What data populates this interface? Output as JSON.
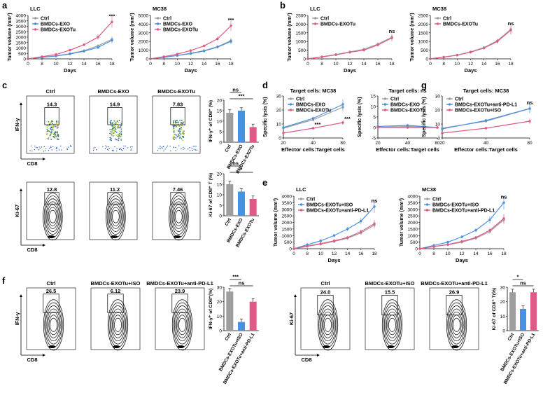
{
  "colors": {
    "grey": "#9e9e9e",
    "blue": "#4a90e2",
    "pink": "#e05a86",
    "black": "#000000"
  },
  "panel_labels": {
    "a": "a",
    "b": "b",
    "c": "c",
    "d": "d",
    "e": "e",
    "f": "f",
    "g": "g"
  },
  "flow_axes": {
    "ifng": "IFN-γ",
    "ki67": "Ki-67",
    "cd8": "CD8"
  },
  "chart_data": [
    {
      "id": "a1",
      "type": "line",
      "panel_title": "LLC",
      "ylabel": "Tumor volume (mm³)",
      "xlabel": "Days",
      "x": [
        0,
        8,
        10,
        12,
        14,
        16,
        18
      ],
      "ylim": [
        0,
        4000
      ],
      "yticks": [
        "0",
        "500",
        "1000",
        "1500",
        "2000",
        "2500",
        "3000",
        "3500",
        "4000"
      ],
      "legend": [
        "Ctrl",
        "BMDCs-EXO",
        "BMDCs-EXOTu"
      ],
      "series": [
        {
          "name": "Ctrl",
          "color": "#9e9e9e",
          "values": [
            0,
            150,
            280,
            480,
            750,
            1200,
            1800
          ]
        },
        {
          "name": "BMDCs-EXO",
          "color": "#4a90e2",
          "values": [
            0,
            140,
            260,
            450,
            700,
            1050,
            1700
          ]
        },
        {
          "name": "BMDCs-EXOTu",
          "color": "#e05a86",
          "values": [
            0,
            200,
            400,
            800,
            1300,
            2000,
            3400
          ]
        }
      ],
      "annotation": "***"
    },
    {
      "id": "a2",
      "type": "line",
      "panel_title": "MC38",
      "ylabel": "Tumor volume (mm³)",
      "xlabel": "Days",
      "x": [
        0,
        8,
        10,
        12,
        14,
        16,
        18
      ],
      "ylim": [
        0,
        5000
      ],
      "yticks": [
        "0",
        "1000",
        "2000",
        "3000",
        "4000",
        "5000"
      ],
      "legend": [
        "Ctrl",
        "BMDCs-EXO",
        "BMDCs-EXOTu"
      ],
      "series": [
        {
          "name": "Ctrl",
          "color": "#9e9e9e",
          "values": [
            0,
            200,
            400,
            650,
            950,
            1400,
            2100
          ]
        },
        {
          "name": "BMDCs-EXO",
          "color": "#4a90e2",
          "values": [
            0,
            180,
            380,
            600,
            900,
            1350,
            2000
          ]
        },
        {
          "name": "BMDCs-EXOTu",
          "color": "#e05a86",
          "values": [
            0,
            250,
            550,
            950,
            1500,
            2300,
            3800
          ]
        }
      ],
      "annotation": "***"
    },
    {
      "id": "b1",
      "type": "line",
      "panel_title": "LLC",
      "ylabel": "Tumor volume (mm³)",
      "xlabel": "Days",
      "x": [
        0,
        8,
        10,
        12,
        14,
        16,
        18
      ],
      "ylim": [
        0,
        2500
      ],
      "yticks": [
        "0",
        "500",
        "1000",
        "1500",
        "2000",
        "2500"
      ],
      "legend": [
        "Ctrl",
        "BMDCs-EXOTu"
      ],
      "series": [
        {
          "name": "Ctrl",
          "color": "#9e9e9e",
          "values": [
            0,
            120,
            250,
            400,
            550,
            850,
            1250
          ]
        },
        {
          "name": "BMDCs-EXOTu",
          "color": "#e05a86",
          "values": [
            0,
            110,
            230,
            380,
            500,
            800,
            1200
          ]
        }
      ],
      "annotation": "ns"
    },
    {
      "id": "b2",
      "type": "line",
      "panel_title": "MC38",
      "ylabel": "Tumor volume (mm³)",
      "xlabel": "Days",
      "x": [
        0,
        8,
        10,
        12,
        14,
        16,
        18
      ],
      "ylim": [
        0,
        2500
      ],
      "yticks": [
        "0",
        "500",
        "1000",
        "1500",
        "2000",
        "2500"
      ],
      "legend": [
        "Ctrl",
        "BMDCs-EXOTu"
      ],
      "series": [
        {
          "name": "Ctrl",
          "color": "#9e9e9e",
          "values": [
            0,
            100,
            220,
            400,
            650,
            1050,
            1700
          ]
        },
        {
          "name": "BMDCs-EXOTu",
          "color": "#e05a86",
          "values": [
            0,
            100,
            210,
            380,
            620,
            1000,
            1650
          ]
        }
      ],
      "annotation": "ns"
    },
    {
      "id": "c_bar1",
      "type": "bar",
      "ylabel": "IFN-γ⁺ of CD8⁺ (%)",
      "ylim": [
        0,
        20
      ],
      "yticks": [
        "0",
        "5",
        "10",
        "15",
        "20"
      ],
      "categories": [
        "Ctrl",
        "BMDCs-EXO",
        "BMDCs-EXOTu"
      ],
      "values": [
        14.0,
        15.0,
        7.2
      ],
      "colors": [
        "#9e9e9e",
        "#4a90e2",
        "#e05a86"
      ],
      "sig": [
        {
          "text": "ns",
          "from": 0,
          "to": 1
        },
        {
          "text": "***",
          "from": 0,
          "to": 2
        }
      ]
    },
    {
      "id": "c_bar2",
      "type": "bar",
      "ylabel": "Ki-67 of CD8⁺ T (%)",
      "ylim": [
        0,
        20
      ],
      "yticks": [
        "0",
        "5",
        "10",
        "15",
        "20"
      ],
      "categories": [
        "Ctrl",
        "BMDCs-EXO",
        "BMDCs-EXOTu"
      ],
      "values": [
        15.0,
        11.5,
        8.0
      ],
      "colors": [
        "#9e9e9e",
        "#4a90e2",
        "#e05a86"
      ],
      "sig": [
        {
          "text": "ns",
          "from": 0,
          "to": 1
        },
        {
          "text": "*",
          "from": 0,
          "to": 2
        }
      ]
    },
    {
      "id": "d1",
      "type": "line",
      "panel_title": "Target cells: MC38",
      "ylabel": "Specific lysis (%)",
      "xlabel": "Effector cells:Target cells",
      "x": [
        "20",
        "40",
        "80"
      ],
      "ylim": [
        0,
        30
      ],
      "yticks": [
        "0",
        "10",
        "20",
        "30"
      ],
      "legend": [
        "Ctrl",
        "BMDCs-EXO",
        "BMDCs-EXOTu"
      ],
      "series": [
        {
          "name": "Ctrl",
          "color": "#9e9e9e",
          "values": [
            7,
            13,
            22
          ]
        },
        {
          "name": "BMDCs-EXO",
          "color": "#4a90e2",
          "values": [
            7.5,
            14,
            24
          ]
        },
        {
          "name": "BMDCs-EXOTu",
          "color": "#e05a86",
          "values": [
            3.5,
            7,
            11
          ]
        }
      ],
      "annotations": [
        "***",
        "***"
      ]
    },
    {
      "id": "d2",
      "type": "line",
      "panel_title": "Target cells: ns",
      "ylabel": "Specific lysis (%)",
      "xlabel": "Effector cells:Target cells",
      "x": [
        "20",
        "40",
        "80"
      ],
      "ylim": [
        -5,
        15
      ],
      "yticks": [
        "-5",
        "0",
        "5",
        "10",
        "15"
      ],
      "legend": [
        "Ctrl",
        "BMDCs-EXO",
        "BMDCs-EXOTu"
      ],
      "series": [
        {
          "name": "Ctrl",
          "color": "#9e9e9e",
          "values": [
            0,
            0.5,
            0
          ]
        },
        {
          "name": "BMDCs-EXO",
          "color": "#4a90e2",
          "values": [
            0.5,
            1,
            0
          ]
        },
        {
          "name": "BMDCs-EXOTu",
          "color": "#e05a86",
          "values": [
            0,
            0,
            0
          ]
        }
      ]
    },
    {
      "id": "g1",
      "type": "line",
      "panel_title": "Target cells: MC38",
      "ylabel": "Specific lysis (%)",
      "xlabel": "Effector cells:Target cells",
      "x": [
        "20",
        "40",
        "80"
      ],
      "ylim": [
        0,
        30
      ],
      "yticks": [
        "0",
        "10",
        "20",
        "30"
      ],
      "legend": [
        "Ctrl",
        "BMDCs-EXOTu+anti-PD-L1",
        "BMDCs-EXOTu+ISO"
      ],
      "series": [
        {
          "name": "Ctrl",
          "color": "#9e9e9e",
          "values": [
            7,
            12,
            21
          ]
        },
        {
          "name": "BMDCs-EXOTu+anti-PD-L1",
          "color": "#4a90e2",
          "values": [
            6.5,
            12.5,
            21
          ]
        },
        {
          "name": "BMDCs-EXOTu+ISO",
          "color": "#e05a86",
          "values": [
            3.5,
            7,
            12
          ]
        }
      ],
      "annotation": "ns"
    },
    {
      "id": "e1",
      "type": "line",
      "panel_title": "LLC",
      "ylabel": "Tumor volume (mm³)",
      "xlabel": "Days",
      "x": [
        0,
        8,
        10,
        12,
        14,
        16,
        18
      ],
      "ylim": [
        0,
        4000
      ],
      "yticks": [
        "0",
        "500",
        "1000",
        "1500",
        "2000",
        "2500",
        "3000",
        "3500",
        "4000"
      ],
      "legend": [
        "Ctrl",
        "BMDCs-EXOTu+ISO",
        "BMDCs-EXOTu+anti-PD-L1"
      ],
      "series": [
        {
          "name": "Ctrl",
          "color": "#9e9e9e",
          "values": [
            0,
            180,
            350,
            550,
            800,
            1200,
            1800
          ]
        },
        {
          "name": "BMDCs-EXOTu+ISO",
          "color": "#4a90e2",
          "values": [
            0,
            300,
            600,
            1000,
            1500,
            2100,
            3200
          ]
        },
        {
          "name": "BMDCs-EXOTu+anti-PD-L1",
          "color": "#e05a86",
          "values": [
            0,
            200,
            380,
            600,
            850,
            1300,
            1900
          ]
        }
      ],
      "annotation": "ns"
    },
    {
      "id": "e2",
      "type": "line",
      "panel_title": "MC38",
      "ylabel": "Tumor volume (mm³)",
      "xlabel": "Days",
      "x": [
        0,
        8,
        10,
        12,
        14,
        16,
        18
      ],
      "ylim": [
        0,
        4000
      ],
      "yticks": [
        "0",
        "500",
        "1000",
        "1500",
        "2000",
        "2500",
        "3000",
        "3500",
        "4000"
      ],
      "legend": [
        "Ctrl",
        "BMDCs-EXOTu+ISO",
        "BMDCs-EXOTu+anti-PD-L1"
      ],
      "series": [
        {
          "name": "Ctrl",
          "color": "#9e9e9e",
          "values": [
            0,
            150,
            300,
            500,
            800,
            1300,
            2200
          ]
        },
        {
          "name": "BMDCs-EXOTu+ISO",
          "color": "#4a90e2",
          "values": [
            0,
            250,
            500,
            900,
            1400,
            2200,
            3500
          ]
        },
        {
          "name": "BMDCs-EXOTu+anti-PD-L1",
          "color": "#e05a86",
          "values": [
            0,
            170,
            320,
            550,
            850,
            1400,
            2300
          ]
        }
      ],
      "annotation": "ns"
    },
    {
      "id": "f_bar1",
      "type": "bar",
      "ylabel": "IFN-γ⁺ of CD8⁺(%)",
      "ylim": [
        0,
        30
      ],
      "yticks": [
        "0",
        "10",
        "20",
        "30"
      ],
      "categories": [
        "Ctrl",
        "BMDCs-EXOTu+ISO",
        "BMDCs-EXOTu+anti-PD-L1"
      ],
      "values": [
        27.0,
        6.0,
        20.0
      ],
      "colors": [
        "#9e9e9e",
        "#4a90e2",
        "#e05a86"
      ],
      "sig": [
        {
          "text": "***",
          "from": 0,
          "to": 1
        },
        {
          "text": "ns",
          "from": 0,
          "to": 2
        }
      ]
    },
    {
      "id": "f_bar2",
      "type": "bar",
      "ylabel": "Ki-67 of CD8⁺ T(%)",
      "ylim": [
        0,
        30
      ],
      "yticks": [
        "0",
        "10",
        "20",
        "30"
      ],
      "categories": [
        "Ctrl",
        "BMDCs-EXOTu+ISO",
        "BMDCs-EXOTu+anti-PD-L1"
      ],
      "values": [
        26.5,
        15.0,
        26.5
      ],
      "colors": [
        "#9e9e9e",
        "#4a90e2",
        "#e05a86"
      ],
      "sig": [
        {
          "text": "*",
          "from": 0,
          "to": 1
        },
        {
          "text": "ns",
          "from": 0,
          "to": 2
        }
      ]
    }
  ],
  "flow": {
    "c_top": [
      {
        "title": "Ctrl",
        "value": "14.3"
      },
      {
        "title": "BMDCs-EXO",
        "value": "14.9"
      },
      {
        "title": "BMDCs-EXOTu",
        "value": "7.83"
      }
    ],
    "c_bottom": [
      {
        "value": "12.8"
      },
      {
        "value": "11.2"
      },
      {
        "value": "7.46"
      }
    ],
    "f_left": [
      {
        "title": "Ctrl",
        "value": "26.5"
      },
      {
        "title": "BMDCs-EXOTu+ISO",
        "value": "6.12"
      },
      {
        "title": "BMDCs-EXOTu+anti-PD-L1",
        "value": "23.9"
      }
    ],
    "f_right": [
      {
        "title": "Ctrl",
        "value": "24.0"
      },
      {
        "title": "BMDCs-EXOTu+ISO",
        "value": "15.5"
      },
      {
        "title": "BMDCs-EXOTu+anti-PD-L1",
        "value": "26.9"
      }
    ]
  }
}
